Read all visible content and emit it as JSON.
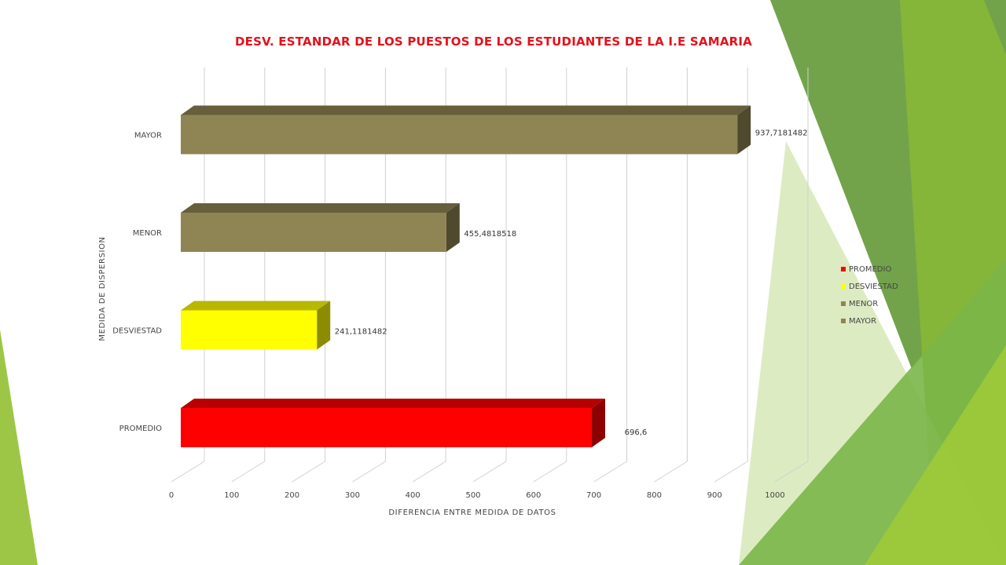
{
  "chart_data": {
    "type": "bar",
    "orientation": "horizontal",
    "title": "DESV. ESTANDAR DE LOS PUESTOS DE LOS ESTUDIANTES DE LA I.E SAMARIA",
    "xlabel": "DIFERENCIA ENTRE MEDIDA DE DATOS",
    "ylabel": "MEDIDA DE DISPERSION",
    "xlim": [
      0,
      1000
    ],
    "xticks": [
      "0",
      "100",
      "200",
      "300",
      "400",
      "500",
      "600",
      "700",
      "800",
      "900",
      "1000"
    ],
    "categories": [
      "PROMEDIO",
      "DESVIESTAD",
      "MENOR",
      "MAYOR"
    ],
    "values": [
      696.6,
      241.1181482,
      455.4818518,
      937.7181482
    ],
    "data_labels": [
      "696,6",
      "241,1181482",
      "455,4818518",
      "937,7181482"
    ],
    "colors": [
      "#ff0000",
      "#ffff00",
      "#8f8454",
      "#8f8454"
    ],
    "legend": {
      "position": "right",
      "entries": [
        "PROMEDIO",
        "DESVIESTAD",
        "MENOR",
        "MAYOR"
      ]
    },
    "grid": true,
    "style_3d": true
  }
}
